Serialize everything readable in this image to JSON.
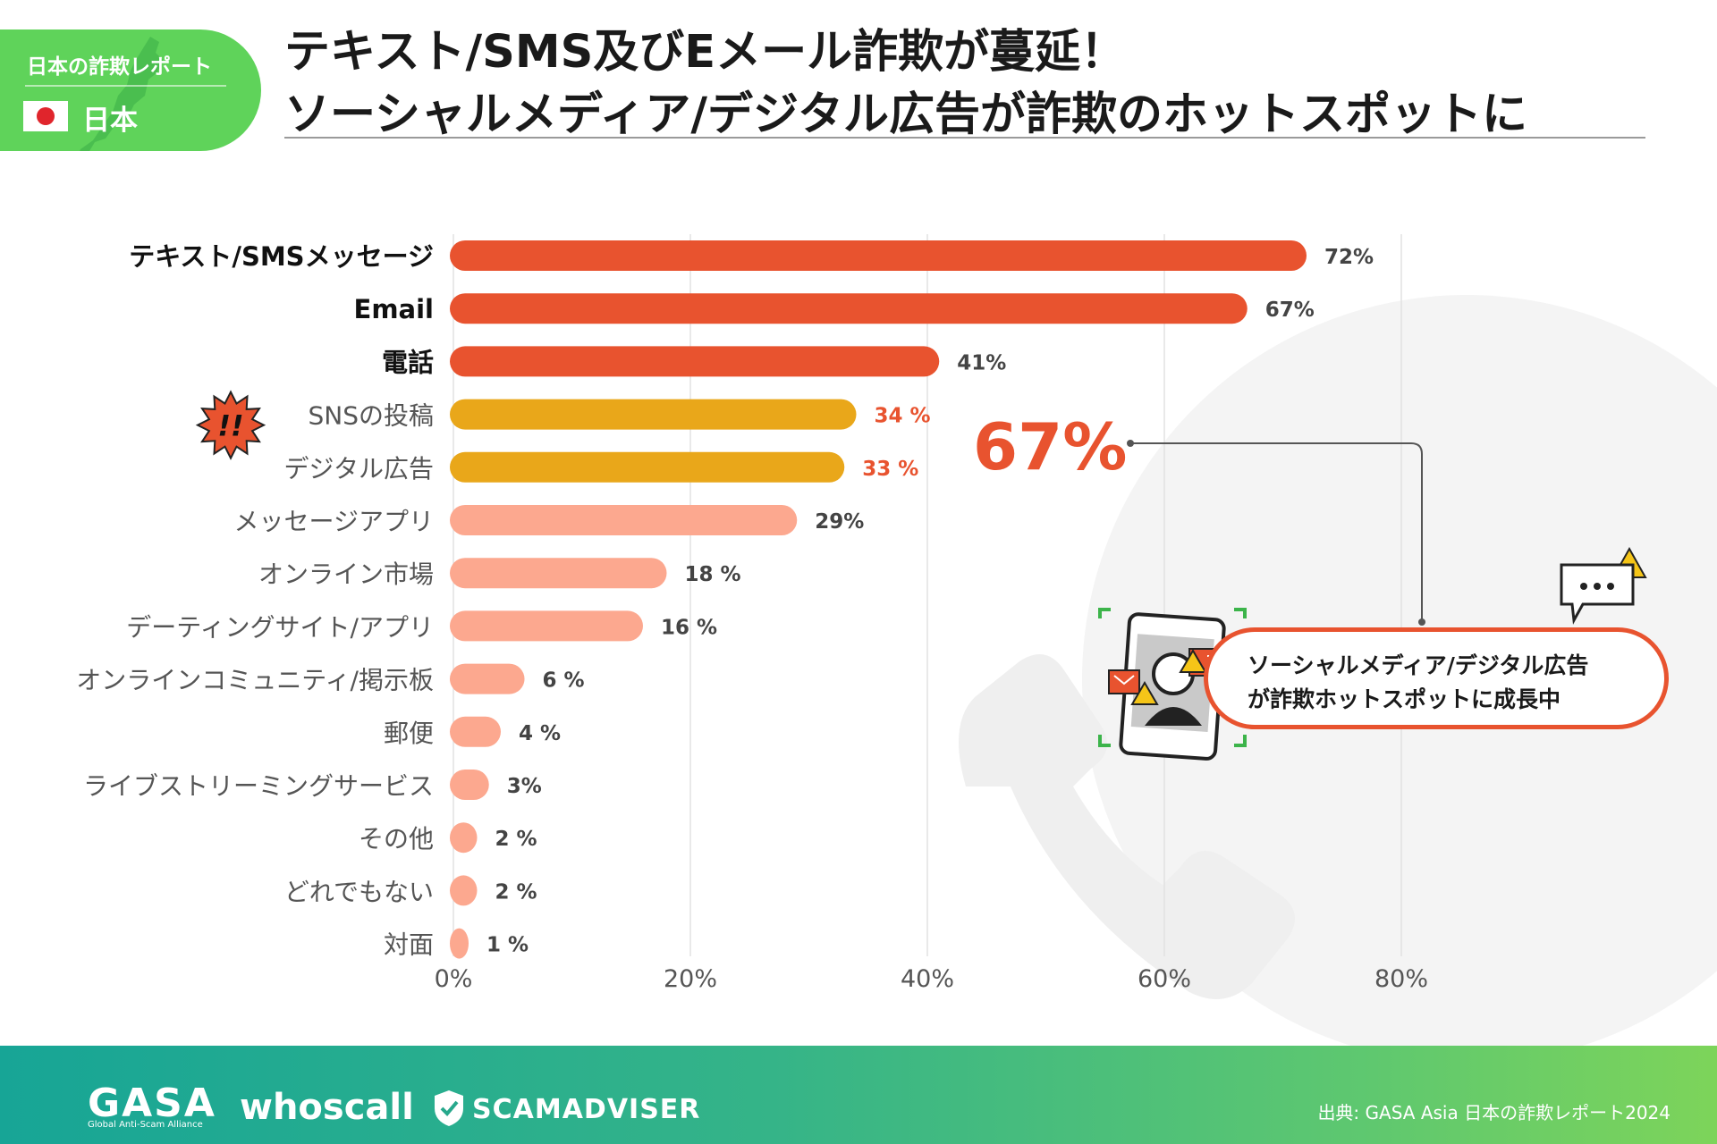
{
  "badge": {
    "title": "日本の詐欺レポート",
    "country": "日本"
  },
  "headline": {
    "line1": "テキスト/SMS及びEメール詐欺が蔓延！",
    "line2": "ソーシャルメディア/デジタル広告が詐欺のホットスポットに"
  },
  "colors": {
    "top": "#e8532f",
    "highlight": "#e9a71a",
    "other": "#fca88f",
    "accent": "#e8532f",
    "brand_green": "#5fd35a"
  },
  "chart_data": {
    "type": "bar",
    "orientation": "horizontal",
    "categories": [
      "テキスト/SMSメッセージ",
      "Email",
      "電話",
      "SNSの投稿",
      "デジタル広告",
      "メッセージアプリ",
      "オンライン市場",
      "デーティングサイト/アプリ",
      "オンラインコミュニティ/掲示板",
      "郵便",
      "ライブストリーミングサービス",
      "その他",
      "どれでもない",
      "対面"
    ],
    "values": [
      72,
      67,
      41,
      34,
      33,
      29,
      18,
      16,
      6,
      4,
      3,
      2,
      2,
      1
    ],
    "value_labels": [
      "72%",
      "67%",
      "41%",
      "34 %",
      "33 %",
      "29%",
      "18 %",
      "16 %",
      "6 %",
      "4 %",
      "3%",
      "2 %",
      "2 %",
      "1 %"
    ],
    "groups": [
      "top",
      "top",
      "top",
      "highlight",
      "highlight",
      "other",
      "other",
      "other",
      "other",
      "other",
      "other",
      "other",
      "other",
      "other"
    ],
    "x_ticks": [
      0,
      20,
      40,
      60,
      80
    ],
    "x_tick_labels": [
      "0%",
      "20%",
      "40%",
      "60%",
      "80%"
    ],
    "xlim": [
      0,
      80
    ],
    "grid": true,
    "alert_icon": "exclamation-burst-icon",
    "alert_icon_text": "!!"
  },
  "callout": {
    "value": "67%",
    "line1": "ソーシャルメディア/デジタル広告",
    "line2": "が詐欺ホットスポットに成長中",
    "icons": [
      "phone-scam-icon",
      "chat-bubble-icon",
      "warning-icon",
      "email-icon"
    ]
  },
  "footer": {
    "logos": {
      "gasa": "GASA",
      "gasa_sub": "Global Anti-Scam Alliance",
      "whoscall": "whoscall",
      "scamadviser": "SCAMADVISER"
    },
    "source": "出典:  GASA Asia 日本の詐欺レポート2024"
  }
}
